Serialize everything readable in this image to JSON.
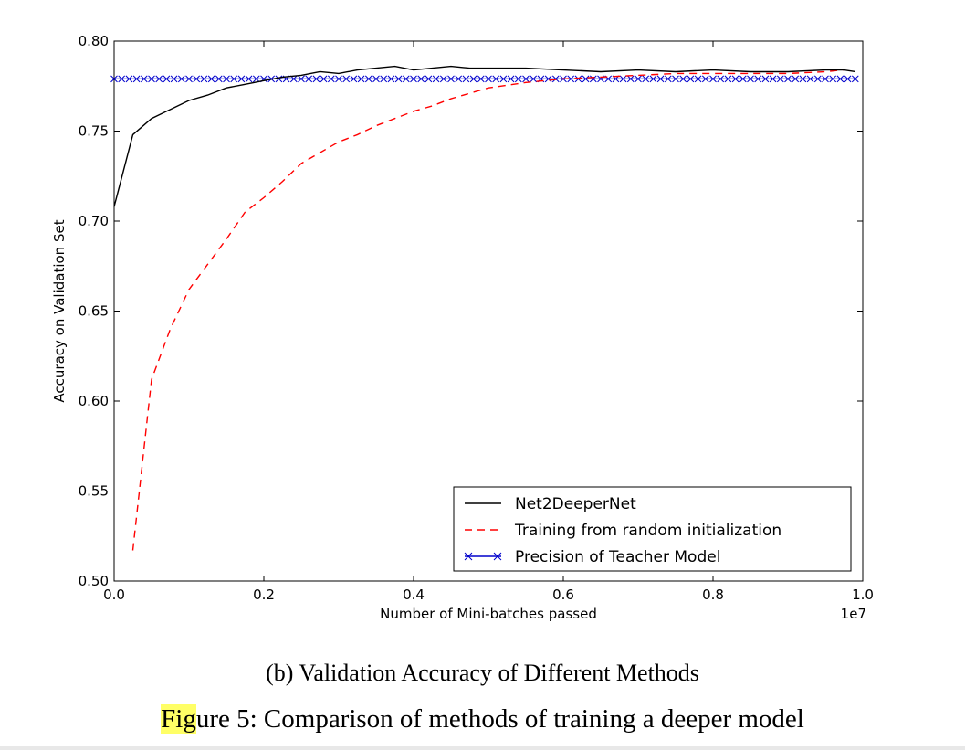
{
  "chart_data": {
    "type": "line",
    "xlabel": "Number of Mini-batches passed",
    "ylabel": "Accuracy on Validation Set",
    "x_offset_label": "1e7",
    "xlim": [
      0.0,
      1.0
    ],
    "ylim": [
      0.5,
      0.8
    ],
    "x_ticks": [
      "0.0",
      "0.2",
      "0.4",
      "0.6",
      "0.8",
      "1.0"
    ],
    "y_ticks": [
      "0.50",
      "0.55",
      "0.60",
      "0.65",
      "0.70",
      "0.75",
      "0.80"
    ],
    "grid": false,
    "legend_position": "lower-right",
    "series": [
      {
        "name": "Net2DeeperNet",
        "style": "solid",
        "color": "#000000",
        "x": [
          0.0,
          0.025,
          0.05,
          0.075,
          0.1,
          0.125,
          0.15,
          0.175,
          0.2,
          0.225,
          0.25,
          0.275,
          0.3,
          0.325,
          0.35,
          0.375,
          0.4,
          0.425,
          0.45,
          0.475,
          0.5,
          0.55,
          0.6,
          0.65,
          0.7,
          0.75,
          0.8,
          0.85,
          0.9,
          0.95,
          0.975,
          0.99
        ],
        "y": [
          0.708,
          0.748,
          0.757,
          0.762,
          0.767,
          0.77,
          0.774,
          0.776,
          0.778,
          0.78,
          0.781,
          0.783,
          0.782,
          0.784,
          0.785,
          0.786,
          0.784,
          0.785,
          0.786,
          0.785,
          0.785,
          0.785,
          0.784,
          0.783,
          0.784,
          0.783,
          0.784,
          0.783,
          0.783,
          0.784,
          0.784,
          0.783
        ]
      },
      {
        "name": "Training from random initialization",
        "style": "dashed",
        "color": "#ff0000",
        "x": [
          0.025,
          0.05,
          0.075,
          0.1,
          0.125,
          0.15,
          0.175,
          0.2,
          0.225,
          0.25,
          0.275,
          0.3,
          0.325,
          0.35,
          0.375,
          0.4,
          0.425,
          0.45,
          0.475,
          0.5,
          0.55,
          0.6,
          0.65,
          0.7,
          0.75,
          0.8,
          0.85,
          0.9,
          0.95,
          0.975
        ],
        "y": [
          0.517,
          0.612,
          0.64,
          0.662,
          0.676,
          0.69,
          0.705,
          0.713,
          0.722,
          0.732,
          0.738,
          0.744,
          0.748,
          0.753,
          0.757,
          0.761,
          0.764,
          0.768,
          0.771,
          0.774,
          0.777,
          0.779,
          0.78,
          0.781,
          0.782,
          0.782,
          0.782,
          0.782,
          0.783,
          0.784
        ]
      },
      {
        "name": "Precision of Teacher Model",
        "style": "solid-x-markers",
        "color": "#0000cc",
        "constant_y": 0.779,
        "x_start": 0.0,
        "x_end": 0.99,
        "marker_count": 100
      }
    ]
  },
  "captions": {
    "sub": "(b) Validation Accuracy of Different Methods",
    "main_highlight": "Fig",
    "main_rest": "ure 5: Comparison of methods of training a deeper model"
  }
}
